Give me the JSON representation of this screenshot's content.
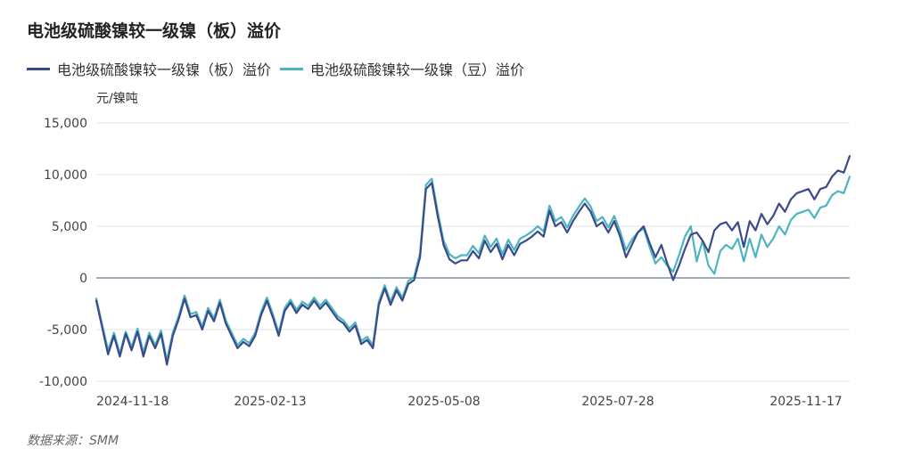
{
  "chart_data": {
    "type": "line",
    "title": "电池级硫酸镍较一级镍（板）溢价",
    "unit_label": "元/镍吨",
    "source": "数据来源：SMM",
    "ylim": [
      -10000,
      15000
    ],
    "y_ticks": [
      15000,
      10000,
      5000,
      0,
      -5000,
      -10000
    ],
    "y_tick_labels": [
      "15,000",
      "10,000",
      "5,000",
      "0",
      "-5,000",
      "-10,000"
    ],
    "x_tick_labels": [
      "2024-11-18",
      "2025-02-13",
      "2025-05-08",
      "2025-07-28",
      "2025-11-17"
    ],
    "grid": true,
    "legend_position": "top-left",
    "series": [
      {
        "name": "电池级硫酸镍较一级镍（板）溢价",
        "color": "#3b4a8a",
        "values": [
          -2200,
          -4800,
          -7400,
          -5600,
          -7600,
          -5400,
          -7000,
          -5200,
          -7600,
          -5600,
          -6800,
          -5400,
          -8400,
          -5600,
          -4000,
          -2000,
          -3800,
          -3600,
          -5000,
          -3200,
          -4200,
          -2400,
          -4400,
          -5600,
          -6800,
          -6200,
          -6600,
          -5600,
          -3600,
          -2200,
          -3800,
          -5600,
          -3200,
          -2400,
          -3400,
          -2600,
          -3000,
          -2200,
          -3000,
          -2400,
          -3200,
          -4000,
          -4400,
          -5200,
          -4600,
          -6400,
          -6000,
          -6800,
          -2600,
          -1000,
          -2600,
          -1200,
          -2200,
          -600,
          -200,
          2000,
          8600,
          9200,
          6000,
          3200,
          1800,
          1400,
          1700,
          1700,
          2600,
          1900,
          3600,
          2500,
          3300,
          1800,
          3200,
          2200,
          3300,
          3600,
          4000,
          4500,
          4000,
          6500,
          5000,
          5400,
          4400,
          5500,
          6400,
          7200,
          6400,
          5000,
          5400,
          4400,
          5500,
          4000,
          2000,
          3200,
          4400,
          5000,
          3400,
          2000,
          3200,
          1400,
          -200,
          1200,
          2800,
          4200,
          4400,
          3600,
          2500,
          4600,
          5200,
          5400,
          4600,
          5400,
          3000,
          5500,
          4600,
          6200,
          5200,
          6000,
          7200,
          6400,
          7600,
          8200,
          8400,
          8600,
          7600,
          8600,
          8800,
          9800,
          10400,
          10200,
          11800
        ]
      },
      {
        "name": "电池级硫酸镍较一级镍（豆）溢价",
        "color": "#4db5c1",
        "values": [
          -2000,
          -4500,
          -7000,
          -5300,
          -7300,
          -5200,
          -6700,
          -4900,
          -7200,
          -5300,
          -6500,
          -5100,
          -8000,
          -5300,
          -3700,
          -1700,
          -3500,
          -3300,
          -4700,
          -2900,
          -3900,
          -2100,
          -4100,
          -5300,
          -6500,
          -5900,
          -6300,
          -5300,
          -3300,
          -1900,
          -3500,
          -5300,
          -2900,
          -2100,
          -3100,
          -2300,
          -2700,
          -1900,
          -2700,
          -2100,
          -2900,
          -3700,
          -4100,
          -4900,
          -4300,
          -6100,
          -5700,
          -6500,
          -2300,
          -700,
          -2300,
          -900,
          -1900,
          -300,
          100,
          2400,
          9000,
          9600,
          6400,
          3600,
          2300,
          1900,
          2200,
          2200,
          3100,
          2400,
          4100,
          3000,
          3800,
          2300,
          3700,
          2700,
          3800,
          4100,
          4500,
          5000,
          4500,
          7000,
          5500,
          5900,
          4900,
          6000,
          6900,
          7700,
          6900,
          5500,
          5900,
          4900,
          6000,
          4500,
          2700,
          3700,
          4400,
          4800,
          3000,
          1400,
          2000,
          1200,
          600,
          2200,
          4000,
          5000,
          1600,
          3600,
          1200,
          400,
          2600,
          3200,
          2800,
          3800,
          1600,
          3800,
          2000,
          4200,
          3000,
          3800,
          5000,
          4200,
          5600,
          6200,
          6400,
          6600,
          5800,
          6800,
          7000,
          8000,
          8400,
          8200,
          9800
        ]
      }
    ]
  }
}
